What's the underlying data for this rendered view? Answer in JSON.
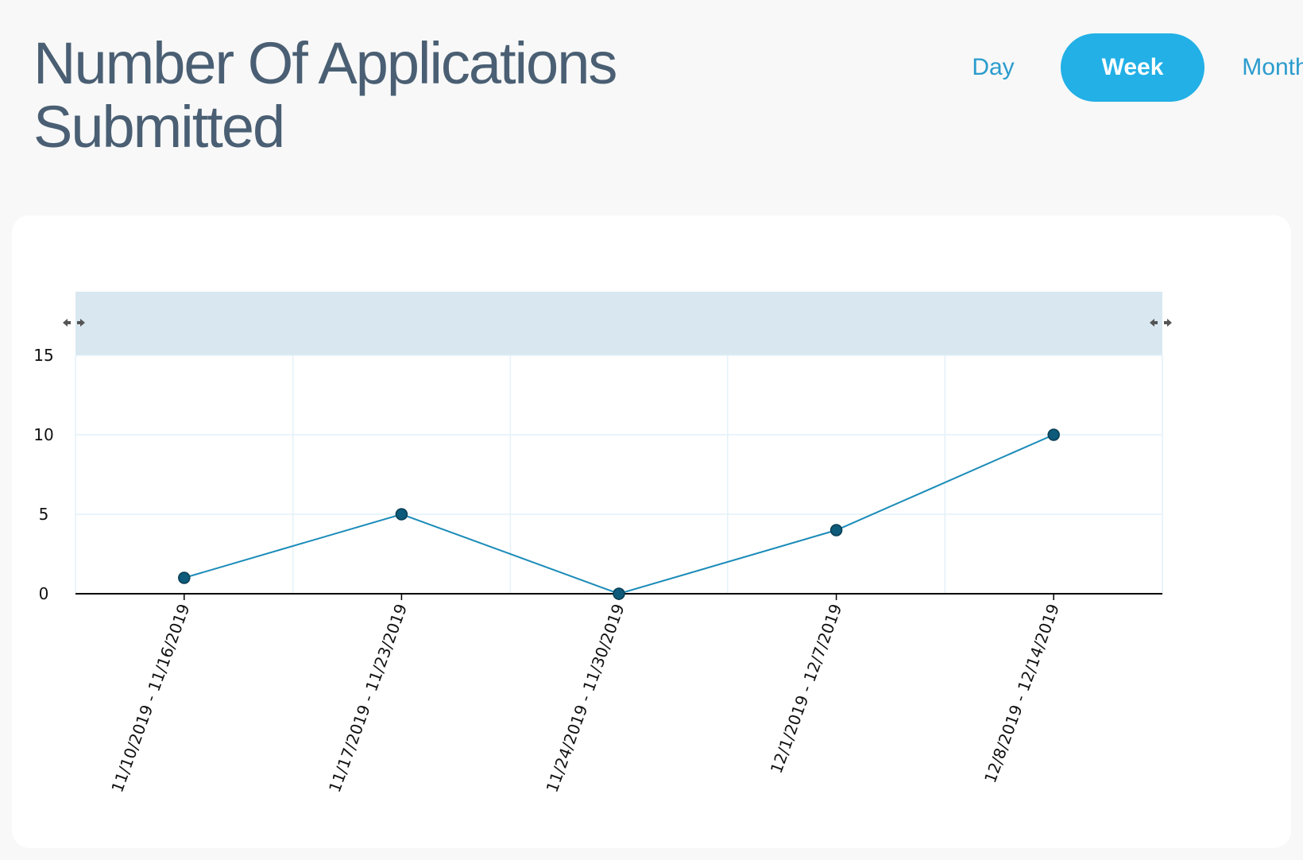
{
  "header": {
    "title": "Number Of Applications Submitted"
  },
  "period_toggle": {
    "day_label": "Day",
    "week_label": "Week",
    "month_label": "Month",
    "selected": "Week"
  },
  "colors": {
    "accent": "#22b0e6",
    "link": "#2a9ccd",
    "line": "#1a8bb8",
    "marker": "#0d5a7a",
    "band": "#d9e8f0",
    "title": "#4a5f73"
  },
  "range_handles": {
    "left_icon": "left-right-arrow-icon",
    "right_icon": "left-right-arrow-icon"
  },
  "chart_data": {
    "type": "line",
    "title": "",
    "xlabel": "",
    "ylabel": "",
    "categories": [
      "11/10/2019 - 11/16/2019",
      "11/17/2019 - 11/23/2019",
      "11/24/2019 - 11/30/2019",
      "12/1/2019 - 12/7/2019",
      "12/8/2019 - 12/14/2019"
    ],
    "values": [
      1,
      5,
      0,
      4,
      10
    ],
    "ylim": [
      0,
      15
    ],
    "yticks": [
      "0",
      "5",
      "10",
      "15"
    ],
    "grid": true,
    "legend": "none",
    "markers": true
  }
}
